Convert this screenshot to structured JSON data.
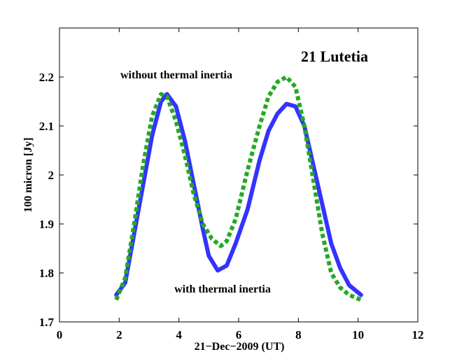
{
  "chart_data": {
    "type": "line",
    "title": "21 Lutetia",
    "xlabel": "21−Dec−2009 (UT)",
    "ylabel": "100 micron [Jy]",
    "xlim": [
      0,
      12
    ],
    "ylim": [
      1.7,
      2.3
    ],
    "xticks": [
      0,
      2,
      4,
      6,
      8,
      10,
      12
    ],
    "xtick_labels": [
      "0",
      "2",
      "4",
      "6",
      "8",
      "10",
      "12"
    ],
    "yticks": [
      1.7,
      1.8,
      1.9,
      2.0,
      2.1,
      2.2
    ],
    "ytick_labels": [
      "1.7",
      "1.8",
      "1.9",
      "2",
      "2.1",
      "2.2"
    ],
    "grid": false,
    "series": [
      {
        "label": "with thermal inertia",
        "color": "#3333ff",
        "style": "solid",
        "x": [
          1.9,
          2.2,
          2.5,
          2.8,
          3.1,
          3.4,
          3.6,
          3.9,
          4.2,
          4.5,
          4.8,
          5.0,
          5.3,
          5.6,
          5.9,
          6.3,
          6.7,
          7.0,
          7.3,
          7.6,
          7.9,
          8.2,
          8.5,
          8.8,
          9.1,
          9.4,
          9.7,
          10.1
        ],
        "y": [
          1.755,
          1.78,
          1.88,
          1.98,
          2.08,
          2.15,
          2.165,
          2.14,
          2.07,
          1.98,
          1.89,
          1.835,
          1.805,
          1.815,
          1.86,
          1.93,
          2.03,
          2.09,
          2.125,
          2.145,
          2.14,
          2.1,
          2.02,
          1.94,
          1.86,
          1.81,
          1.775,
          1.755
        ]
      },
      {
        "label": "without thermal inertia",
        "color": "#22aa22",
        "style": "dotted",
        "x": [
          1.9,
          2.2,
          2.5,
          2.8,
          3.1,
          3.4,
          3.6,
          3.9,
          4.2,
          4.5,
          4.8,
          5.1,
          5.4,
          5.6,
          5.9,
          6.3,
          6.7,
          7.0,
          7.3,
          7.6,
          7.9,
          8.2,
          8.5,
          8.8,
          9.1,
          9.4,
          9.7,
          10.1
        ],
        "y": [
          1.745,
          1.79,
          1.9,
          2.02,
          2.12,
          2.165,
          2.16,
          2.11,
          2.04,
          1.96,
          1.9,
          1.87,
          1.855,
          1.865,
          1.91,
          2.01,
          2.1,
          2.16,
          2.19,
          2.2,
          2.18,
          2.1,
          1.99,
          1.88,
          1.8,
          1.77,
          1.755,
          1.745
        ]
      }
    ],
    "annotations": [
      "without thermal inertia",
      "with thermal inertia"
    ]
  }
}
